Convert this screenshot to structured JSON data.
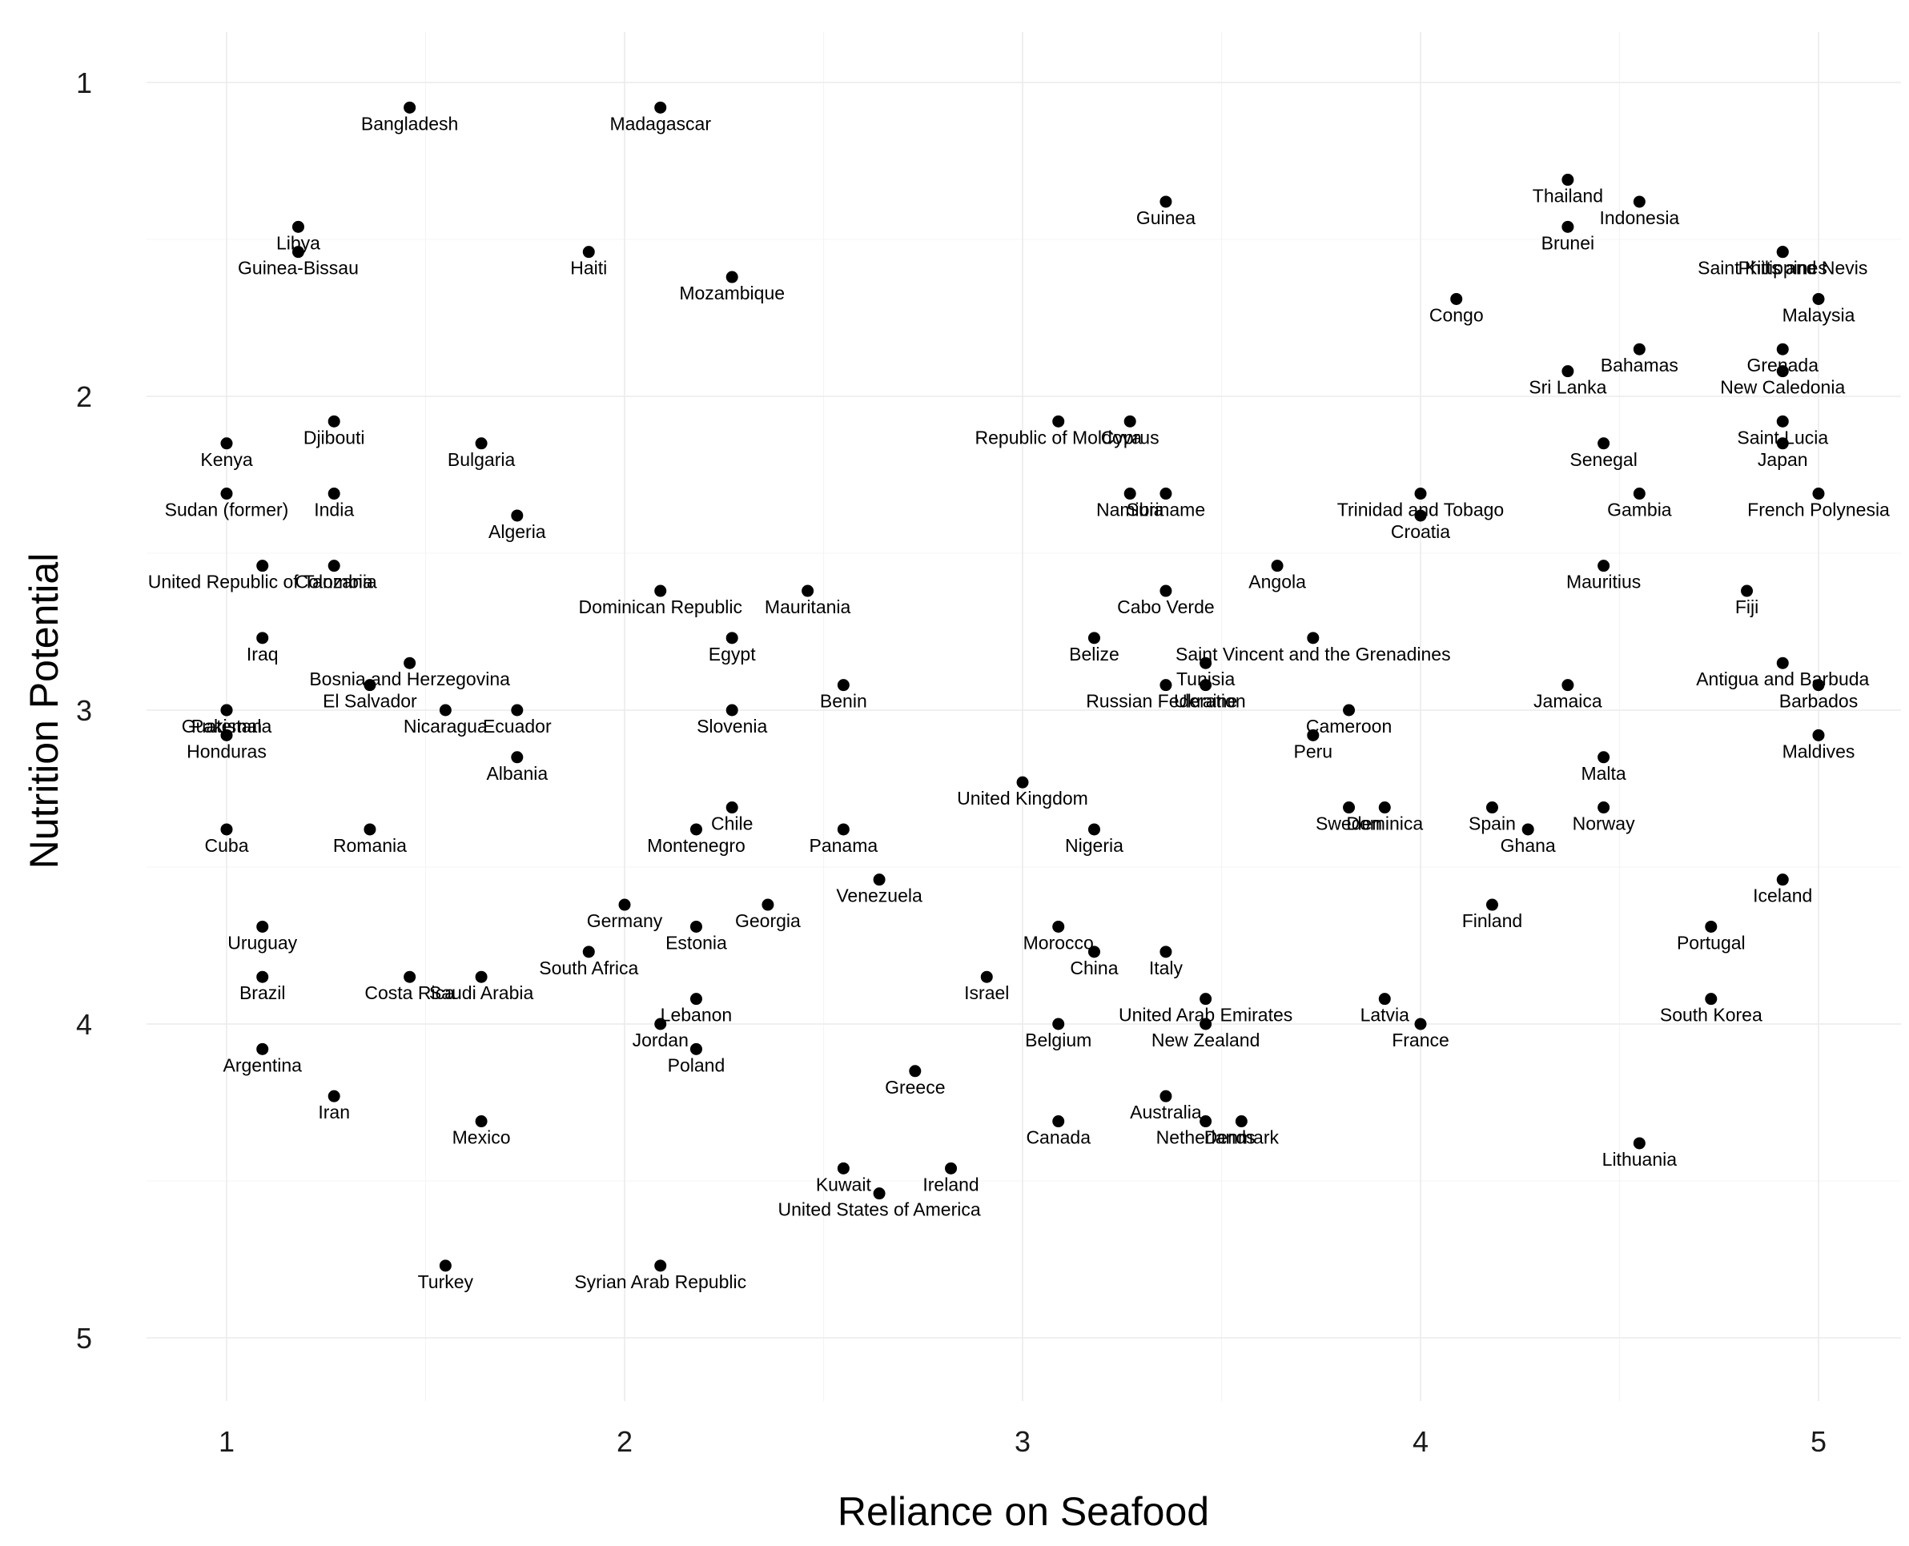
{
  "chart_data": {
    "type": "scatter",
    "xlabel": "Reliance on Seafood",
    "ylabel": "Nutrition Potential",
    "xlim": [
      0.8,
      5.2
    ],
    "ylim": [
      1,
      5
    ],
    "y_reversed": true,
    "x_ticks": [
      "1",
      "2",
      "3",
      "4",
      "5"
    ],
    "y_ticks": [
      "1",
      "2",
      "3",
      "4",
      "5"
    ],
    "grid": true,
    "legend": "none",
    "points": [
      {
        "label": "Bangladesh",
        "x": 1.46,
        "y": 1.08
      },
      {
        "label": "Madagascar",
        "x": 2.09,
        "y": 1.08
      },
      {
        "label": "Thailand",
        "x": 4.37,
        "y": 1.31
      },
      {
        "label": "Indonesia",
        "x": 4.55,
        "y": 1.38
      },
      {
        "label": "Guinea",
        "x": 3.36,
        "y": 1.38
      },
      {
        "label": "Libya",
        "x": 1.18,
        "y": 1.46
      },
      {
        "label": "Brunei",
        "x": 4.37,
        "y": 1.46
      },
      {
        "label": "Guinea-Bissau",
        "x": 1.18,
        "y": 1.54
      },
      {
        "label": "Haiti",
        "x": 1.91,
        "y": 1.54
      },
      {
        "label": "Saint Kitts and Nevis",
        "x": 4.91,
        "y": 1.54
      },
      {
        "label": "Philippines",
        "x": 4.91,
        "y": 1.54
      },
      {
        "label": "Mozambique",
        "x": 2.27,
        "y": 1.62
      },
      {
        "label": "Congo",
        "x": 4.09,
        "y": 1.69
      },
      {
        "label": "Malaysia",
        "x": 5.0,
        "y": 1.69
      },
      {
        "label": "Bahamas",
        "x": 4.55,
        "y": 1.85
      },
      {
        "label": "Grenada",
        "x": 4.91,
        "y": 1.85
      },
      {
        "label": "Sri Lanka",
        "x": 4.37,
        "y": 1.92
      },
      {
        "label": "New Caledonia",
        "x": 4.91,
        "y": 1.92
      },
      {
        "label": "Djibouti",
        "x": 1.27,
        "y": 2.08
      },
      {
        "label": "Republic of Moldova",
        "x": 3.09,
        "y": 2.08
      },
      {
        "label": "Cyprus",
        "x": 3.27,
        "y": 2.08
      },
      {
        "label": "Saint Lucia",
        "x": 4.91,
        "y": 2.08
      },
      {
        "label": "Kenya",
        "x": 1.0,
        "y": 2.15
      },
      {
        "label": "Bulgaria",
        "x": 1.64,
        "y": 2.15
      },
      {
        "label": "Senegal",
        "x": 4.46,
        "y": 2.15
      },
      {
        "label": "Japan",
        "x": 4.91,
        "y": 2.15
      },
      {
        "label": "Sudan (former)",
        "x": 1.0,
        "y": 2.31
      },
      {
        "label": "India",
        "x": 1.27,
        "y": 2.31
      },
      {
        "label": "Namibia",
        "x": 3.27,
        "y": 2.31
      },
      {
        "label": "Suriname",
        "x": 3.36,
        "y": 2.31
      },
      {
        "label": "Trinidad and Tobago",
        "x": 4.0,
        "y": 2.31
      },
      {
        "label": "Gambia",
        "x": 4.55,
        "y": 2.31
      },
      {
        "label": "French Polynesia",
        "x": 5.0,
        "y": 2.31
      },
      {
        "label": "Algeria",
        "x": 1.73,
        "y": 2.38
      },
      {
        "label": "Croatia",
        "x": 4.0,
        "y": 2.38
      },
      {
        "label": "United Republic of Tanzania",
        "x": 1.09,
        "y": 2.54
      },
      {
        "label": "Colombia",
        "x": 1.27,
        "y": 2.54
      },
      {
        "label": "Angola",
        "x": 3.64,
        "y": 2.54
      },
      {
        "label": "Mauritius",
        "x": 4.46,
        "y": 2.54
      },
      {
        "label": "Dominican Republic",
        "x": 2.09,
        "y": 2.62
      },
      {
        "label": "Mauritania",
        "x": 2.46,
        "y": 2.62
      },
      {
        "label": "Cabo Verde",
        "x": 3.36,
        "y": 2.62
      },
      {
        "label": "Fiji",
        "x": 4.82,
        "y": 2.62
      },
      {
        "label": "Iraq",
        "x": 1.09,
        "y": 2.77
      },
      {
        "label": "Egypt",
        "x": 2.27,
        "y": 2.77
      },
      {
        "label": "Belize",
        "x": 3.18,
        "y": 2.77
      },
      {
        "label": "Saint Vincent and the Grenadines",
        "x": 3.73,
        "y": 2.77
      },
      {
        "label": "Bosnia and Herzegovina",
        "x": 1.46,
        "y": 2.85
      },
      {
        "label": "Tunisia",
        "x": 3.46,
        "y": 2.85
      },
      {
        "label": "Antigua and Barbuda",
        "x": 4.91,
        "y": 2.85
      },
      {
        "label": "El Salvador",
        "x": 1.36,
        "y": 2.92
      },
      {
        "label": "Benin",
        "x": 2.55,
        "y": 2.92
      },
      {
        "label": "Russian Federation",
        "x": 3.36,
        "y": 2.92
      },
      {
        "label": "Ukraine",
        "x": 3.46,
        "y": 2.92
      },
      {
        "label": "Jamaica",
        "x": 4.37,
        "y": 2.92
      },
      {
        "label": "Barbados",
        "x": 5.0,
        "y": 2.92
      },
      {
        "label": "Guatemala",
        "x": 1.0,
        "y": 3.0
      },
      {
        "label": "Nicaragua",
        "x": 1.55,
        "y": 3.0
      },
      {
        "label": "Ecuador",
        "x": 1.73,
        "y": 3.0
      },
      {
        "label": "Slovenia",
        "x": 2.27,
        "y": 3.0
      },
      {
        "label": "Cameroon",
        "x": 3.82,
        "y": 3.0
      },
      {
        "label": "Pakistan",
        "x": 1.0,
        "y": 3.0
      },
      {
        "label": "Honduras",
        "x": 1.0,
        "y": 3.08
      },
      {
        "label": "Peru",
        "x": 3.73,
        "y": 3.08
      },
      {
        "label": "Maldives",
        "x": 5.0,
        "y": 3.08
      },
      {
        "label": "Albania",
        "x": 1.73,
        "y": 3.15
      },
      {
        "label": "Malta",
        "x": 4.46,
        "y": 3.15
      },
      {
        "label": "United Kingdom",
        "x": 3.0,
        "y": 3.23
      },
      {
        "label": "Chile",
        "x": 2.27,
        "y": 3.31
      },
      {
        "label": "Sweden",
        "x": 3.82,
        "y": 3.31
      },
      {
        "label": "Dominica",
        "x": 3.91,
        "y": 3.31
      },
      {
        "label": "Spain",
        "x": 4.18,
        "y": 3.31
      },
      {
        "label": "Norway",
        "x": 4.46,
        "y": 3.31
      },
      {
        "label": "Cuba",
        "x": 1.0,
        "y": 3.38
      },
      {
        "label": "Romania",
        "x": 1.36,
        "y": 3.38
      },
      {
        "label": "Montenegro",
        "x": 2.18,
        "y": 3.38
      },
      {
        "label": "Panama",
        "x": 2.55,
        "y": 3.38
      },
      {
        "label": "Nigeria",
        "x": 3.18,
        "y": 3.38
      },
      {
        "label": "Ghana",
        "x": 4.27,
        "y": 3.38
      },
      {
        "label": "Venezuela",
        "x": 2.64,
        "y": 3.54
      },
      {
        "label": "Iceland",
        "x": 4.91,
        "y": 3.54
      },
      {
        "label": "Germany",
        "x": 2.0,
        "y": 3.62
      },
      {
        "label": "Georgia",
        "x": 2.36,
        "y": 3.62
      },
      {
        "label": "Finland",
        "x": 4.18,
        "y": 3.62
      },
      {
        "label": "Uruguay",
        "x": 1.09,
        "y": 3.69
      },
      {
        "label": "Estonia",
        "x": 2.18,
        "y": 3.69
      },
      {
        "label": "Morocco",
        "x": 3.09,
        "y": 3.69
      },
      {
        "label": "Portugal",
        "x": 4.73,
        "y": 3.69
      },
      {
        "label": "South Africa",
        "x": 1.91,
        "y": 3.77
      },
      {
        "label": "China",
        "x": 3.18,
        "y": 3.77
      },
      {
        "label": "Italy",
        "x": 3.36,
        "y": 3.77
      },
      {
        "label": "Brazil",
        "x": 1.09,
        "y": 3.85
      },
      {
        "label": "Costa Rica",
        "x": 1.46,
        "y": 3.85
      },
      {
        "label": "Saudi Arabia",
        "x": 1.64,
        "y": 3.85
      },
      {
        "label": "Israel",
        "x": 2.91,
        "y": 3.85
      },
      {
        "label": "Lebanon",
        "x": 2.18,
        "y": 3.92
      },
      {
        "label": "United Arab Emirates",
        "x": 3.46,
        "y": 3.92
      },
      {
        "label": "Latvia",
        "x": 3.91,
        "y": 3.92
      },
      {
        "label": "South Korea",
        "x": 4.73,
        "y": 3.92
      },
      {
        "label": "Jordan",
        "x": 2.09,
        "y": 4.0
      },
      {
        "label": "Belgium",
        "x": 3.09,
        "y": 4.0
      },
      {
        "label": "New Zealand",
        "x": 3.46,
        "y": 4.0
      },
      {
        "label": "France",
        "x": 4.0,
        "y": 4.0
      },
      {
        "label": "Argentina",
        "x": 1.09,
        "y": 4.08
      },
      {
        "label": "Poland",
        "x": 2.18,
        "y": 4.08
      },
      {
        "label": "Greece",
        "x": 2.73,
        "y": 4.15
      },
      {
        "label": "Iran",
        "x": 1.27,
        "y": 4.23
      },
      {
        "label": "Australia",
        "x": 3.36,
        "y": 4.23
      },
      {
        "label": "Mexico",
        "x": 1.64,
        "y": 4.31
      },
      {
        "label": "Canada",
        "x": 3.09,
        "y": 4.31
      },
      {
        "label": "Netherlands",
        "x": 3.46,
        "y": 4.31
      },
      {
        "label": "Denmark",
        "x": 3.55,
        "y": 4.31
      },
      {
        "label": "Lithuania",
        "x": 4.55,
        "y": 4.38
      },
      {
        "label": "Kuwait",
        "x": 2.55,
        "y": 4.46
      },
      {
        "label": "Ireland",
        "x": 2.82,
        "y": 4.46
      },
      {
        "label": "United States of America",
        "x": 2.64,
        "y": 4.54
      },
      {
        "label": "Turkey",
        "x": 1.55,
        "y": 4.77
      },
      {
        "label": "Syrian Arab Republic",
        "x": 2.09,
        "y": 4.77
      }
    ]
  }
}
